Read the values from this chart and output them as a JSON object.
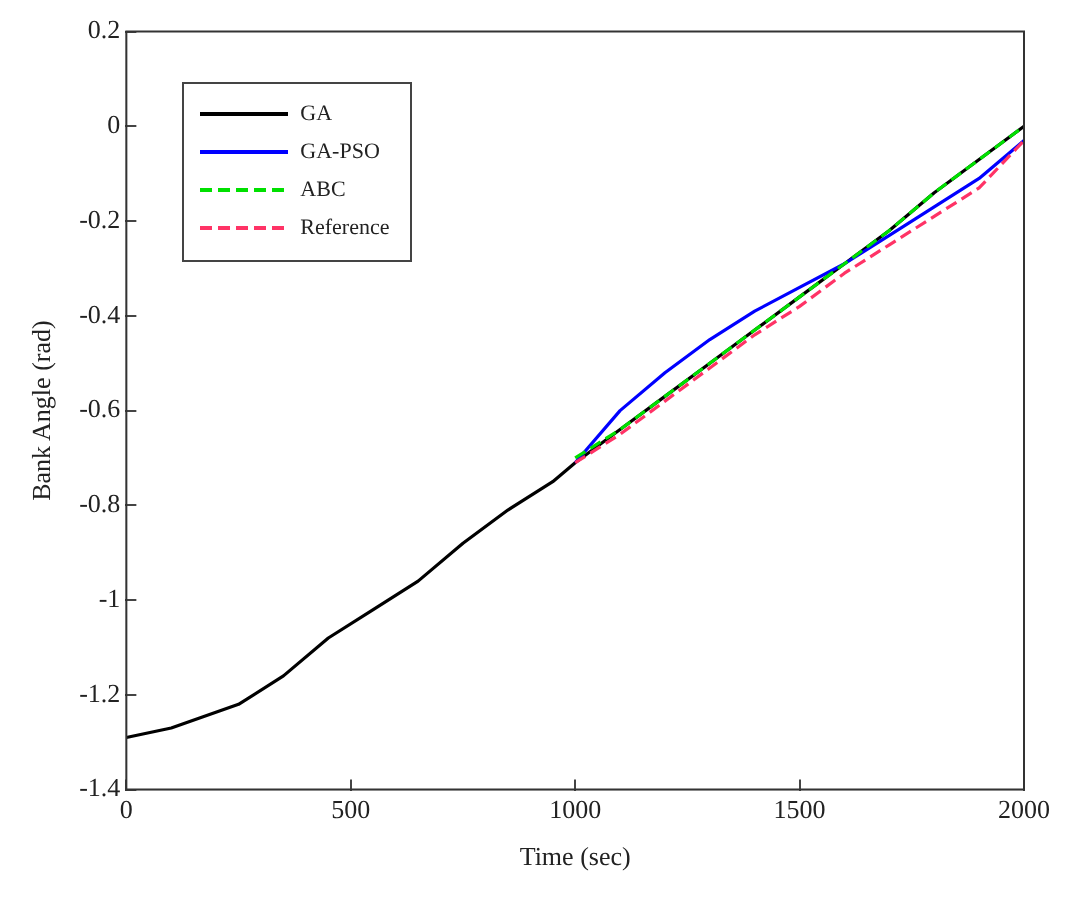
{
  "chart_data": {
    "type": "line",
    "xlabel": "Time (sec)",
    "ylabel": "Bank Angle (rad)",
    "x": [
      0,
      100,
      250,
      350,
      450,
      550,
      650,
      750,
      850,
      950,
      1000,
      1100,
      1200,
      1300,
      1400,
      1500,
      1600,
      1700,
      1800,
      1900,
      2000
    ],
    "xlim": [
      0,
      2000
    ],
    "xticks": [
      0,
      500,
      1000,
      1500,
      2000
    ],
    "ylim": [
      -1.4,
      0.2
    ],
    "yticks": [
      -1.4,
      -1.2,
      -1,
      -0.8,
      -0.6,
      -0.4,
      -0.2,
      0,
      0.2
    ],
    "grid": false,
    "legend": "top left",
    "marker": "none",
    "series": [
      {
        "name": "GA",
        "color": "#000000",
        "line_style": "solid",
        "values": [
          -1.29,
          -1.27,
          -1.22,
          -1.16,
          -1.08,
          -1.02,
          -0.96,
          -0.88,
          -0.81,
          -0.75,
          -0.71,
          -0.64,
          -0.57,
          -0.5,
          -0.43,
          -0.36,
          -0.29,
          -0.22,
          -0.14,
          -0.07,
          0
        ]
      },
      {
        "name": "GA-PSO",
        "color": "#0000ff",
        "line_style": "solid",
        "values": [
          null,
          null,
          null,
          null,
          null,
          null,
          null,
          null,
          null,
          null,
          -0.71,
          -0.6,
          -0.52,
          -0.45,
          -0.39,
          -0.34,
          -0.29,
          -0.23,
          -0.17,
          -0.11,
          -0.03
        ]
      },
      {
        "name": "ABC",
        "color": "#00e000",
        "line_style": "dashed",
        "values": [
          null,
          null,
          null,
          null,
          null,
          null,
          null,
          null,
          null,
          null,
          -0.7,
          -0.64,
          -0.57,
          -0.5,
          -0.43,
          -0.36,
          -0.29,
          -0.22,
          -0.14,
          -0.07,
          0
        ]
      },
      {
        "name": "Reference",
        "color": "#ff3366",
        "line_style": "dashed",
        "values": [
          null,
          null,
          null,
          null,
          null,
          null,
          null,
          null,
          null,
          null,
          -0.71,
          -0.65,
          -0.58,
          -0.51,
          -0.44,
          -0.38,
          -0.31,
          -0.25,
          -0.19,
          -0.13,
          -0.03
        ]
      }
    ]
  }
}
